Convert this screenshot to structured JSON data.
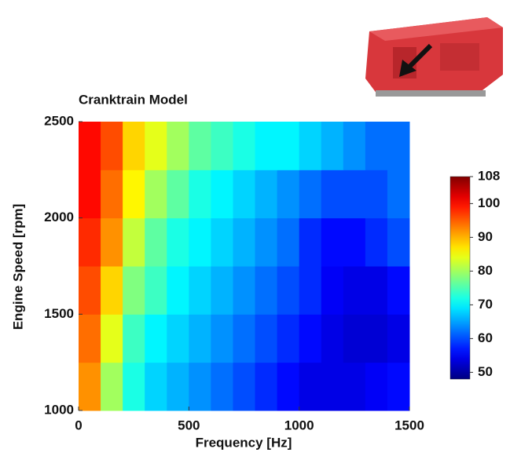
{
  "chart_data": {
    "type": "heatmap",
    "title": "Cranktrain Model",
    "x_label": "Frequency [Hz]",
    "y_label": "Engine Speed [rpm]",
    "x": [
      50,
      150,
      250,
      350,
      450,
      550,
      650,
      750,
      850,
      950,
      1050,
      1150,
      1250,
      1350,
      1450
    ],
    "y": [
      1125,
      1375,
      1625,
      1875,
      2125,
      2375
    ],
    "values": [
      [
        92,
        80,
        72,
        68,
        66,
        64,
        62,
        60,
        58,
        56,
        54,
        54,
        54,
        55,
        56
      ],
      [
        94,
        84,
        74,
        70,
        68,
        66,
        64,
        62,
        60,
        58,
        56,
        54,
        53,
        53,
        54
      ],
      [
        96,
        88,
        78,
        74,
        70,
        68,
        66,
        64,
        62,
        60,
        58,
        55,
        54,
        54,
        56
      ],
      [
        98,
        92,
        82,
        76,
        72,
        70,
        68,
        66,
        64,
        62,
        58,
        56,
        56,
        58,
        60
      ],
      [
        100,
        94,
        86,
        80,
        76,
        72,
        70,
        68,
        66,
        64,
        62,
        60,
        60,
        60,
        62
      ],
      [
        100,
        96,
        88,
        84,
        80,
        76,
        74,
        72,
        70,
        70,
        68,
        66,
        64,
        62,
        62
      ]
    ],
    "xlim": [
      0,
      1500
    ],
    "ylim": [
      1000,
      2500
    ],
    "xticks": [
      0,
      500,
      1000,
      1500
    ],
    "yticks": [
      1000,
      1500,
      2000,
      2500
    ],
    "colormap": "jet",
    "clim": [
      48,
      108
    ],
    "cticks": [
      50,
      60,
      70,
      80,
      90,
      100,
      108
    ]
  }
}
